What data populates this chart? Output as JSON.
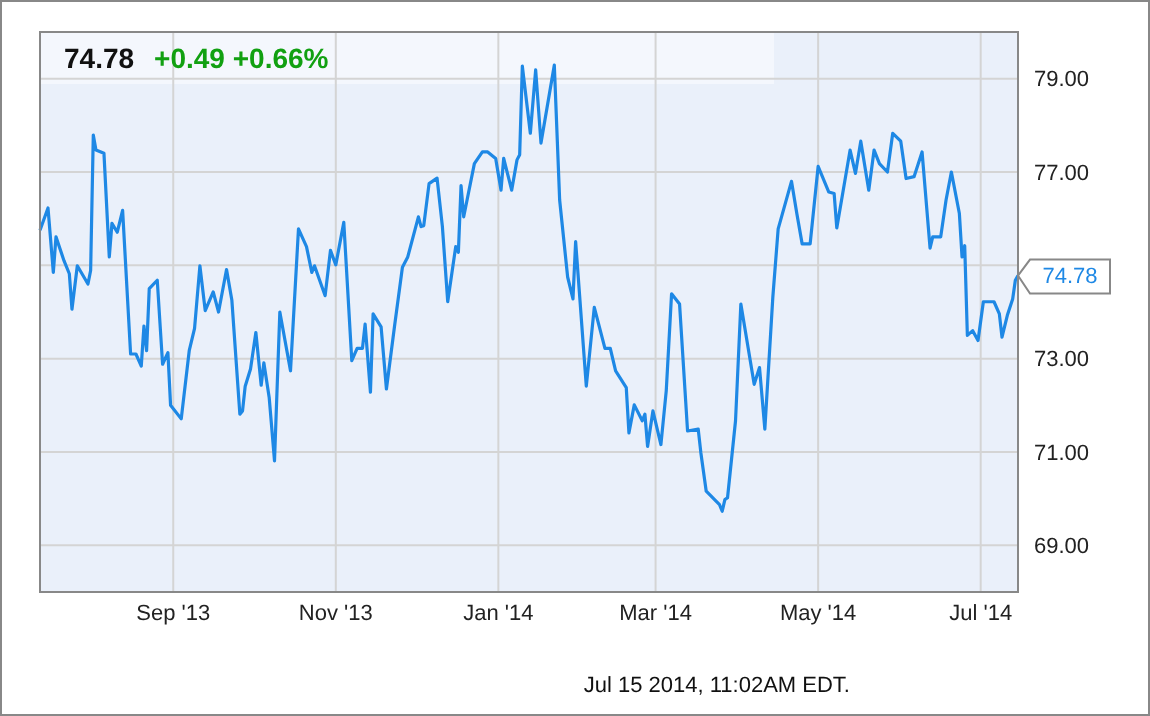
{
  "chart_data": {
    "type": "line",
    "title": "74.78",
    "subtitle": "+0.49  +0.66%",
    "xlim": [
      "2013-07-13",
      "2014-07-15"
    ],
    "ylim": [
      68,
      80
    ],
    "xticks": [
      {
        "value": "2013-09-01",
        "label": "Sep '13"
      },
      {
        "value": "2013-11-01",
        "label": "Nov '13"
      },
      {
        "value": "2014-01-01",
        "label": "Jan '14"
      },
      {
        "value": "2014-03-01",
        "label": "Mar '14"
      },
      {
        "value": "2014-05-01",
        "label": "May '14"
      },
      {
        "value": "2014-07-01",
        "label": "Jul '14"
      }
    ],
    "yticks": [
      {
        "value": 69,
        "label": "69.00"
      },
      {
        "value": 71,
        "label": "71.00"
      },
      {
        "value": 73,
        "label": "73.00"
      },
      {
        "value": 75,
        "label": null
      },
      {
        "value": 77,
        "label": "77.00"
      },
      {
        "value": 79,
        "label": "79.00"
      }
    ],
    "grid": true,
    "marker": "none",
    "line_style": "solid",
    "annotations": [
      {
        "text": "74.78",
        "x": "2014-07-15",
        "y": 74.78
      },
      "Jul 15 2014, 11:02AM EDT."
    ],
    "x": [
      "2013-07-13",
      "2013-07-16",
      "2013-07-18",
      "2013-07-19",
      "2013-07-22",
      "2013-07-24",
      "2013-07-25",
      "2013-07-27",
      "2013-07-31",
      "2013-08-01",
      "2013-08-02",
      "2013-08-03",
      "2013-08-06",
      "2013-08-08",
      "2013-08-09",
      "2013-08-11",
      "2013-08-13",
      "2013-08-16",
      "2013-08-18",
      "2013-08-20",
      "2013-08-21",
      "2013-08-22",
      "2013-08-23",
      "2013-08-26",
      "2013-08-28",
      "2013-08-30",
      "2013-08-31",
      "2013-09-04",
      "2013-09-07",
      "2013-09-09",
      "2013-09-11",
      "2013-09-13",
      "2013-09-16",
      "2013-09-18",
      "2013-09-21",
      "2013-09-23",
      "2013-09-26",
      "2013-09-27",
      "2013-09-28",
      "2013-09-30",
      "2013-10-02",
      "2013-10-04",
      "2013-10-05",
      "2013-10-07",
      "2013-10-09",
      "2013-10-11",
      "2013-10-15",
      "2013-10-18",
      "2013-10-21",
      "2013-10-23",
      "2013-10-24",
      "2013-10-28",
      "2013-10-30",
      "2013-11-01",
      "2013-11-04",
      "2013-11-07",
      "2013-11-09",
      "2013-11-11",
      "2013-11-12",
      "2013-11-14",
      "2013-11-15",
      "2013-11-18",
      "2013-11-20",
      "2013-11-23",
      "2013-11-26",
      "2013-11-28",
      "2013-12-02",
      "2013-12-03",
      "2013-12-04",
      "2013-12-06",
      "2013-12-09",
      "2013-12-11",
      "2013-12-13",
      "2013-12-16",
      "2013-12-17",
      "2013-12-18",
      "2013-12-19",
      "2013-12-23",
      "2013-12-26",
      "2013-12-28",
      "2013-12-31",
      "2014-01-02",
      "2014-01-03",
      "2014-01-06",
      "2014-01-08",
      "2014-01-09",
      "2014-01-10",
      "2014-01-13",
      "2014-01-15",
      "2014-01-17",
      "2014-01-22",
      "2014-01-24",
      "2014-01-27",
      "2014-01-29",
      "2014-01-30",
      "2014-02-03",
      "2014-02-06",
      "2014-02-10",
      "2014-02-12",
      "2014-02-14",
      "2014-02-18",
      "2014-02-19",
      "2014-02-21",
      "2014-02-24",
      "2014-02-25",
      "2014-02-26",
      "2014-02-28",
      "2014-03-03",
      "2014-03-05",
      "2014-03-07",
      "2014-03-10",
      "2014-03-13",
      "2014-03-17",
      "2014-03-18",
      "2014-03-20",
      "2014-03-25",
      "2014-03-26",
      "2014-03-27",
      "2014-03-28",
      "2014-03-31",
      "2014-04-02",
      "2014-04-07",
      "2014-04-09",
      "2014-04-11",
      "2014-04-14",
      "2014-04-16",
      "2014-04-21",
      "2014-04-23",
      "2014-04-25",
      "2014-04-28",
      "2014-05-01",
      "2014-05-05",
      "2014-05-07",
      "2014-05-08",
      "2014-05-13",
      "2014-05-15",
      "2014-05-17",
      "2014-05-20",
      "2014-05-22",
      "2014-05-24",
      "2014-05-27",
      "2014-05-29",
      "2014-06-01",
      "2014-06-03",
      "2014-06-06",
      "2014-06-09",
      "2014-06-12",
      "2014-06-13",
      "2014-06-16",
      "2014-06-18",
      "2014-06-20",
      "2014-06-23",
      "2014-06-24",
      "2014-06-25",
      "2014-06-26",
      "2014-06-28",
      "2014-06-30",
      "2014-07-02",
      "2014-07-06",
      "2014-07-08",
      "2014-07-09",
      "2014-07-11",
      "2014-07-13",
      "2014-07-14",
      "2014-07-15"
    ],
    "series": [
      {
        "color": "#1e88e5",
        "values": [
          75.75,
          76.23,
          74.85,
          75.61,
          75.1,
          74.82,
          74.06,
          74.99,
          74.6,
          74.89,
          77.79,
          77.47,
          77.4,
          75.18,
          75.9,
          75.71,
          76.18,
          73.1,
          73.1,
          72.84,
          73.7,
          73.17,
          74.5,
          74.68,
          72.88,
          73.13,
          72.0,
          71.71,
          73.17,
          73.65,
          74.99,
          74.03,
          74.43,
          74.0,
          74.91,
          74.25,
          71.81,
          71.88,
          72.41,
          72.78,
          73.56,
          72.43,
          72.91,
          72.17,
          70.81,
          74.0,
          72.74,
          75.78,
          75.4,
          74.85,
          74.99,
          74.35,
          75.32,
          75.01,
          75.92,
          72.96,
          73.22,
          73.22,
          73.74,
          72.28,
          73.96,
          73.68,
          72.35,
          73.68,
          74.96,
          75.18,
          76.04,
          75.83,
          75.85,
          76.75,
          76.87,
          75.83,
          74.22,
          75.4,
          75.28,
          76.71,
          76.04,
          77.18,
          77.43,
          77.43,
          77.29,
          76.61,
          77.29,
          76.61,
          77.26,
          77.37,
          79.27,
          77.83,
          79.19,
          77.62,
          79.29,
          76.4,
          74.75,
          74.28,
          75.51,
          72.41,
          74.1,
          73.22,
          73.22,
          72.74,
          72.38,
          71.41,
          72.01,
          71.67,
          71.81,
          71.12,
          71.88,
          71.16,
          72.31,
          74.39,
          74.17,
          71.45,
          71.49,
          70.98,
          70.16,
          69.87,
          69.73,
          69.98,
          70.02,
          71.67,
          74.17,
          72.45,
          72.81,
          71.49,
          74.32,
          75.78,
          76.8,
          76.11,
          75.46,
          75.46,
          77.12,
          76.57,
          76.54,
          75.8,
          77.47,
          76.97,
          77.66,
          76.61,
          77.47,
          77.18,
          77.0,
          77.83,
          77.66,
          76.86,
          76.9,
          77.43,
          75.37,
          75.61,
          75.61,
          76.4,
          77.0,
          76.11,
          75.18,
          75.42,
          73.5,
          73.6,
          73.39,
          74.22,
          74.22,
          73.96,
          73.46,
          73.93,
          74.28,
          74.68,
          74.78
        ]
      }
    ]
  }
}
